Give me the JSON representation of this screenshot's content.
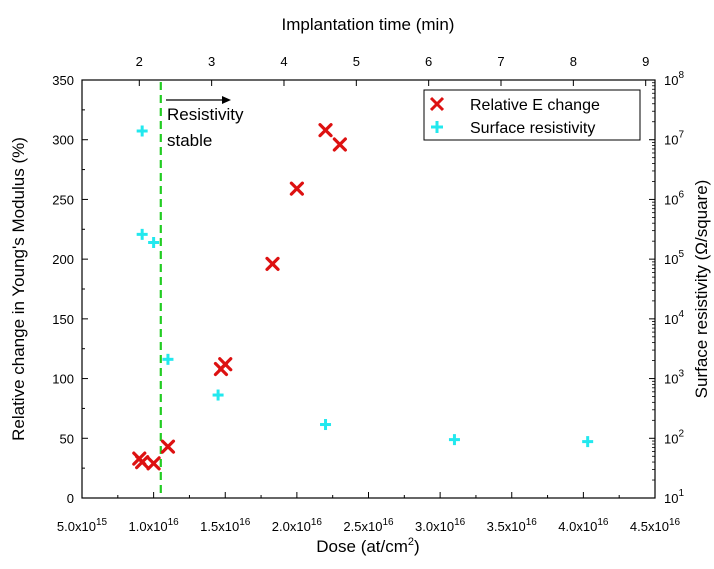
{
  "chart_data": {
    "type": "scatter",
    "top_axis": {
      "label": "Implantation time (min)",
      "tick_labels": [
        "2",
        "3",
        "4",
        "5",
        "6",
        "7",
        "8",
        "9"
      ],
      "tick_doses": [
        0.9,
        1.405,
        1.91,
        2.415,
        2.92,
        3.425,
        3.93,
        4.435
      ]
    },
    "x_axis": {
      "label_main": "Dose (at/cm",
      "label_sup": "2",
      "label_end": ")",
      "range": [
        0.5,
        4.5
      ],
      "unit_multiplier": "1e16",
      "ticks": [
        {
          "value": 0.5,
          "mantissa": "5.0x10",
          "exp": "15"
        },
        {
          "value": 1.0,
          "mantissa": "1.0x10",
          "exp": "16"
        },
        {
          "value": 1.5,
          "mantissa": "1.5x10",
          "exp": "16"
        },
        {
          "value": 2.0,
          "mantissa": "2.0x10",
          "exp": "16"
        },
        {
          "value": 2.5,
          "mantissa": "2.5x10",
          "exp": "16"
        },
        {
          "value": 3.0,
          "mantissa": "3.0x10",
          "exp": "16"
        },
        {
          "value": 3.5,
          "mantissa": "3.5x10",
          "exp": "16"
        },
        {
          "value": 4.0,
          "mantissa": "4.0x10",
          "exp": "16"
        },
        {
          "value": 4.5,
          "mantissa": "4.5x10",
          "exp": "16"
        }
      ]
    },
    "y_left": {
      "label": "Relative change in Young's Modulus (%)",
      "range": [
        0,
        350
      ],
      "ticks": [
        "0",
        "50",
        "100",
        "150",
        "200",
        "250",
        "300",
        "350"
      ]
    },
    "y_right": {
      "label": "Surface resistivity (Ω/square)",
      "scale": "log",
      "range_exp": [
        1,
        8
      ],
      "tick_base": "10",
      "tick_exps": [
        "1",
        "2",
        "3",
        "4",
        "5",
        "6",
        "7",
        "8"
      ]
    },
    "series": [
      {
        "name": "Relative E change",
        "marker": "x",
        "color": "#dd1111",
        "axis": "left",
        "points": [
          {
            "x": 0.9,
            "y": 33
          },
          {
            "x": 0.92,
            "y": 30
          },
          {
            "x": 1.0,
            "y": 29
          },
          {
            "x": 1.1,
            "y": 43
          },
          {
            "x": 1.47,
            "y": 108
          },
          {
            "x": 1.5,
            "y": 112
          },
          {
            "x": 1.83,
            "y": 196
          },
          {
            "x": 2.0,
            "y": 259
          },
          {
            "x": 2.2,
            "y": 308
          },
          {
            "x": 2.3,
            "y": 296
          }
        ]
      },
      {
        "name": "Surface resistivity",
        "marker": "plus",
        "color": "#22e8ee",
        "axis": "right",
        "points": [
          {
            "x": 0.92,
            "y": 14000000.0
          },
          {
            "x": 0.92,
            "y": 260000.0
          },
          {
            "x": 1.0,
            "y": 190000.0
          },
          {
            "x": 1.1,
            "y": 2100.0
          },
          {
            "x": 1.45,
            "y": 530.0
          },
          {
            "x": 2.2,
            "y": 170.0
          },
          {
            "x": 3.1,
            "y": 95
          },
          {
            "x": 4.03,
            "y": 88
          }
        ]
      }
    ],
    "threshold": {
      "x": 1.05,
      "style": "dashed",
      "color": "#22cc22",
      "label_line1": "Resistivity",
      "label_line2": "stable"
    },
    "legend": {
      "placement": "top-right",
      "entries": [
        "Relative E change",
        "Surface resistivity"
      ]
    }
  }
}
